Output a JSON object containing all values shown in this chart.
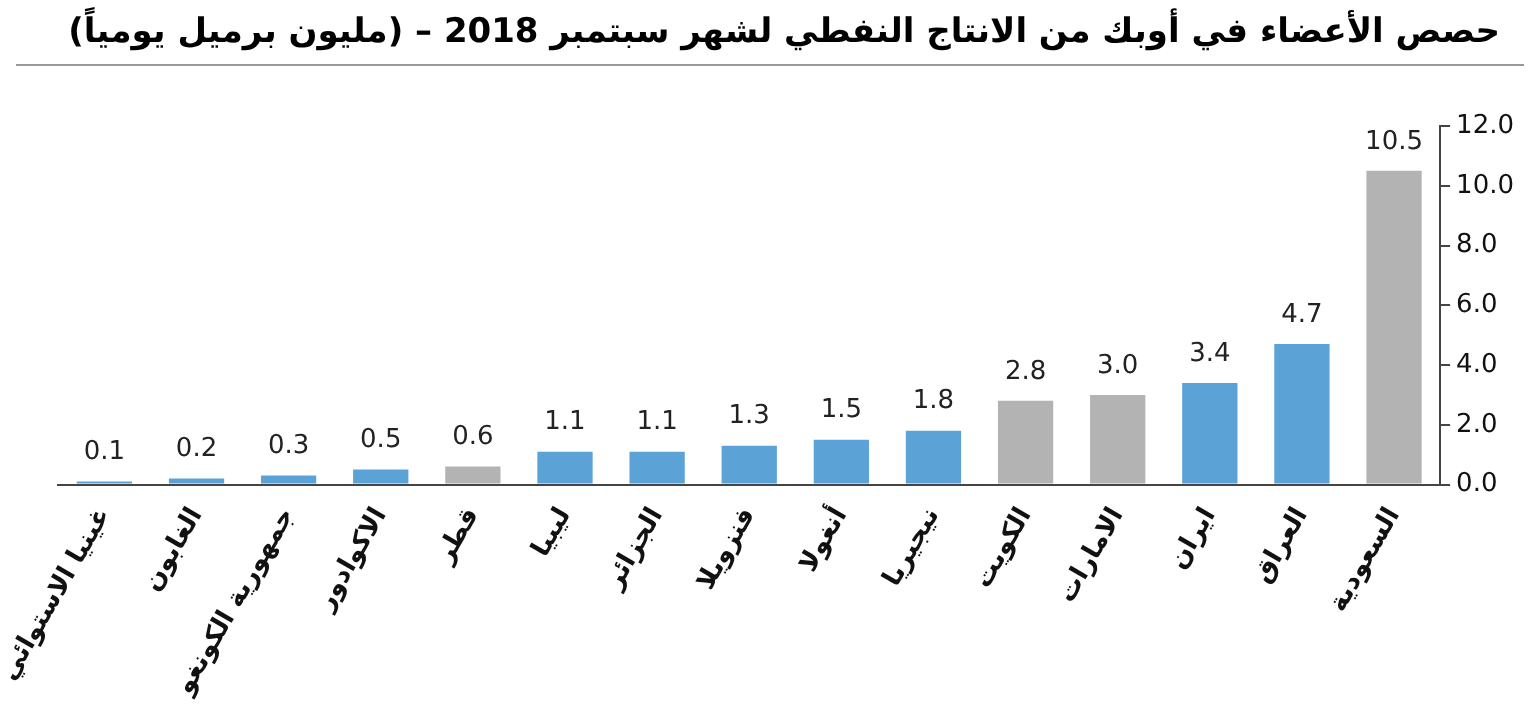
{
  "chart_data": {
    "type": "bar",
    "title": "حصص الأعضاء في  أوبك من الانتاج النفطي لشهر سبتمبر 2018 – (مليون برميل يومياً)",
    "categories": [
      "غينيا الاستوائي",
      "الغابون",
      "جمهورية الكونغو",
      "الاكوادور",
      "قطر",
      "ليبيا",
      "الجزائر",
      "فنزويلا",
      "أنغولا",
      "نيجيريا",
      "الكويت",
      "الامارات",
      "ايران",
      "العراق",
      "السعودية"
    ],
    "values": [
      0.1,
      0.2,
      0.3,
      0.5,
      0.6,
      1.1,
      1.1,
      1.3,
      1.5,
      1.8,
      2.8,
      3.0,
      3.4,
      4.7,
      10.5
    ],
    "colors": [
      "#5ba3d6",
      "#5ba3d6",
      "#5ba3d6",
      "#5ba3d6",
      "#b3b3b3",
      "#5ba3d6",
      "#5ba3d6",
      "#5ba3d6",
      "#5ba3d6",
      "#5ba3d6",
      "#b3b3b3",
      "#b3b3b3",
      "#5ba3d6",
      "#5ba3d6",
      "#b3b3b3"
    ],
    "value_labels": [
      "0.1",
      "0.2",
      "0.3",
      "0.5",
      "0.6",
      "1.1",
      "1.1",
      "1.3",
      "1.5",
      "1.8",
      "2.8",
      "3.0",
      "3.4",
      "4.7",
      "10.5"
    ],
    "ylim": [
      0,
      12
    ],
    "yticks": [
      {
        "value": 0,
        "label": "0.0"
      },
      {
        "value": 2,
        "label": "2.0"
      },
      {
        "value": 4,
        "label": "4.0"
      },
      {
        "value": 6,
        "label": "6.0"
      },
      {
        "value": 8,
        "label": "8.0"
      },
      {
        "value": 10,
        "label": "10.0"
      },
      {
        "value": 12,
        "label": "12.0"
      }
    ],
    "grid": false,
    "legend": false
  }
}
